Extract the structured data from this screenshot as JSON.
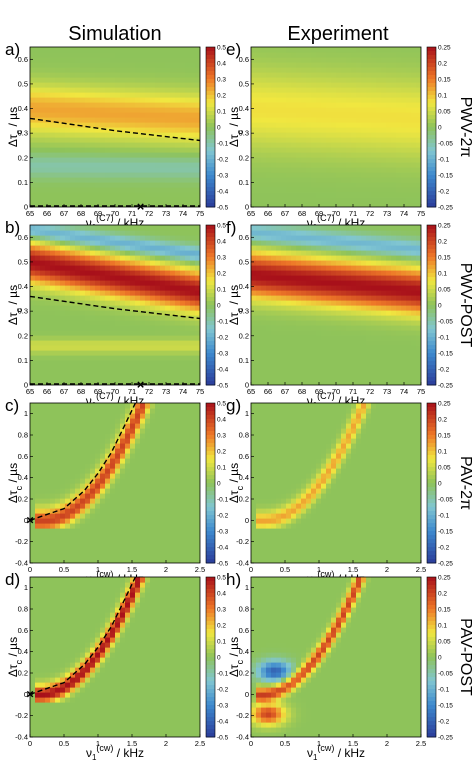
{
  "header": {
    "left": "Simulation",
    "right": "Experiment"
  },
  "panel_labels": [
    "a)",
    "b)",
    "c)",
    "d)",
    "e)",
    "f)",
    "g)",
    "h)"
  ],
  "row_titles": [
    "PWV-2π",
    "PWV-POST",
    "PAV-2π",
    "PAV-POST"
  ],
  "ylabel": {
    "main": "Δτ",
    "sub": "c",
    "unit": " / µs"
  },
  "xlabels": {
    "c7": {
      "main": "ν",
      "sub": "1",
      "sup": "(C7)",
      "unit": " / kHz"
    },
    "cw": {
      "main": "ν",
      "sub": "1",
      "sup": "(cw)",
      "unit": " / kHz"
    }
  },
  "colors": {
    "min": "#2b3c9a",
    "mid": "#8ec35a",
    "max": "#a8101a"
  },
  "colorbar_ticks": {
    "sim": [
      "0.5",
      "0.4",
      "0.3",
      "0.2",
      "0.1",
      "0",
      "-0.1",
      "-0.2",
      "-0.3",
      "-0.4",
      "-0.5"
    ],
    "exp": [
      "0.25",
      "0.2",
      "0.15",
      "0.1",
      "0.05",
      "0",
      "-0.05",
      "-0.1",
      "-0.15",
      "-0.2",
      "-0.25"
    ]
  },
  "chart_data": [
    {
      "panel": "a)",
      "type": "heatmap",
      "source": "Simulation",
      "series_label": "PWV-2π",
      "x_ticks": [
        "65",
        "66",
        "67",
        "68",
        "69",
        "70",
        "71",
        "72",
        "73",
        "74",
        "75"
      ],
      "xlim": [
        65,
        75
      ],
      "y_ticks": [
        "0",
        "0.1",
        "0.2",
        "0.3",
        "0.4",
        "0.5",
        "0.6"
      ],
      "ylim": [
        0,
        0.65
      ],
      "zlim": [
        -0.5,
        0.5
      ],
      "features": [
        {
          "kind": "ridge",
          "y_at_xmin": 0.4,
          "y_at_xmax": 0.36,
          "value": 0.24,
          "width": 0.1
        },
        {
          "kind": "ridge",
          "y_at_xmin": 0.17,
          "y_at_xmax": 0.16,
          "value": -0.1,
          "width": 0.05
        }
      ],
      "dashed_curve": [
        [
          65,
          0.36
        ],
        [
          70,
          0.31
        ],
        [
          75,
          0.27
        ]
      ],
      "marker": {
        "symbol": "×",
        "x": 71.5,
        "y": 0
      }
    },
    {
      "panel": "b)",
      "type": "heatmap",
      "source": "Simulation",
      "series_label": "PWV-POST",
      "x_ticks": [
        "65",
        "66",
        "67",
        "68",
        "69",
        "70",
        "71",
        "72",
        "73",
        "74",
        "75"
      ],
      "xlim": [
        65,
        75
      ],
      "y_ticks": [
        "0",
        "0.1",
        "0.2",
        "0.3",
        "0.4",
        "0.5",
        "0.6"
      ],
      "ylim": [
        0,
        0.65
      ],
      "zlim": [
        -0.5,
        0.5
      ],
      "features": [
        {
          "kind": "ridge",
          "y_at_xmin": 0.5,
          "y_at_xmax": 0.38,
          "value": 0.5,
          "width": 0.08
        },
        {
          "kind": "ridge",
          "y_at_xmin": 0.63,
          "y_at_xmax": 0.53,
          "value": -0.22,
          "width": 0.035
        },
        {
          "kind": "ridge",
          "y_at_xmin": 0.16,
          "y_at_xmax": 0.16,
          "value": 0.1,
          "width": 0.03
        }
      ],
      "dashed_curve": [
        [
          65,
          0.36
        ],
        [
          70,
          0.31
        ],
        [
          75,
          0.27
        ]
      ],
      "marker": {
        "symbol": "×",
        "x": 71.5,
        "y": 0
      }
    },
    {
      "panel": "c)",
      "type": "heatmap",
      "source": "Simulation",
      "series_label": "PAV-2π",
      "x_ticks": [
        "0",
        "0.5",
        "1",
        "1.5",
        "2",
        "2.5"
      ],
      "xlim": [
        0,
        2.5
      ],
      "y_ticks": [
        "-0.4",
        "-0.2",
        "0",
        "0.2",
        "0.4",
        "0.6",
        "0.8",
        "1"
      ],
      "ylim": [
        -0.4,
        1.1
      ],
      "zlim": [
        -0.5,
        0.5
      ],
      "features": [
        {
          "kind": "curve-ridge",
          "offset_x": 0.15,
          "value": 0.4,
          "width": 0.1
        }
      ],
      "dashed_curve": [
        [
          0,
          0
        ],
        [
          0.5,
          0.11
        ],
        [
          0.8,
          0.28
        ],
        [
          1.0,
          0.44
        ],
        [
          1.2,
          0.64
        ],
        [
          1.4,
          0.9
        ],
        [
          1.55,
          1.1
        ]
      ],
      "marker": {
        "symbol": "×",
        "x": 0,
        "y": 0
      }
    },
    {
      "panel": "d)",
      "type": "heatmap",
      "source": "Simulation",
      "series_label": "PAV-POST",
      "x_ticks": [
        "0",
        "0.5",
        "1",
        "1.5",
        "2",
        "2.5"
      ],
      "xlim": [
        0,
        2.5
      ],
      "y_ticks": [
        "-0.4",
        "-0.2",
        "0",
        "0.2",
        "0.4",
        "0.6",
        "0.8",
        "1"
      ],
      "ylim": [
        -0.4,
        1.1
      ],
      "zlim": [
        -0.5,
        0.5
      ],
      "features": [
        {
          "kind": "curve-ridge",
          "offset_x": 0.1,
          "value": 0.5,
          "width": 0.08
        }
      ],
      "dashed_curve": [
        [
          0,
          0
        ],
        [
          0.5,
          0.11
        ],
        [
          0.8,
          0.28
        ],
        [
          1.0,
          0.44
        ],
        [
          1.2,
          0.64
        ],
        [
          1.4,
          0.9
        ],
        [
          1.55,
          1.1
        ]
      ],
      "marker": {
        "symbol": "×",
        "x": 0,
        "y": 0
      }
    },
    {
      "panel": "e)",
      "type": "heatmap",
      "source": "Experiment",
      "series_label": "PWV-2π",
      "x_ticks": [
        "65",
        "66",
        "67",
        "68",
        "69",
        "70",
        "71",
        "72",
        "73",
        "74",
        "75"
      ],
      "xlim": [
        65,
        75
      ],
      "y_ticks": [
        "0",
        "0.1",
        "0.2",
        "0.3",
        "0.4",
        "0.5",
        "0.6"
      ],
      "ylim": [
        0,
        0.65
      ],
      "zlim": [
        -0.25,
        0.25
      ],
      "features": [
        {
          "kind": "ridge",
          "y_at_xmin": 0.4,
          "y_at_xmax": 0.36,
          "value": 0.08,
          "width": 0.16
        }
      ]
    },
    {
      "panel": "f)",
      "type": "heatmap",
      "source": "Experiment",
      "series_label": "PWV-POST",
      "x_ticks": [
        "65",
        "66",
        "67",
        "68",
        "69",
        "70",
        "71",
        "72",
        "73",
        "74",
        "75"
      ],
      "xlim": [
        65,
        75
      ],
      "y_ticks": [
        "0",
        "0.1",
        "0.2",
        "0.3",
        "0.4",
        "0.5",
        "0.6"
      ],
      "ylim": [
        0,
        0.65
      ],
      "zlim": [
        -0.25,
        0.25
      ],
      "features": [
        {
          "kind": "ridge",
          "y_at_xmin": 0.45,
          "y_at_xmax": 0.38,
          "value": 0.25,
          "width": 0.09
        },
        {
          "kind": "ridge",
          "y_at_xmin": 0.62,
          "y_at_xmax": 0.55,
          "value": -0.1,
          "width": 0.04
        }
      ]
    },
    {
      "panel": "g)",
      "type": "heatmap",
      "source": "Experiment",
      "series_label": "PAV-2π",
      "x_ticks": [
        "0",
        "0.5",
        "1",
        "1.5",
        "2",
        "2.5"
      ],
      "xlim": [
        0,
        2.5
      ],
      "y_ticks": [
        "-0.4",
        "-0.2",
        "0",
        "0.2",
        "0.4",
        "0.6",
        "0.8",
        "1"
      ],
      "ylim": [
        -0.4,
        1.1
      ],
      "zlim": [
        -0.25,
        0.25
      ],
      "features": [
        {
          "kind": "curve-ridge",
          "offset_x": 0.15,
          "value": 0.12,
          "width": 0.08
        }
      ]
    },
    {
      "panel": "h)",
      "type": "heatmap",
      "source": "Experiment",
      "series_label": "PAV-POST",
      "x_ticks": [
        "0",
        "0.5",
        "1",
        "1.5",
        "2",
        "2.5"
      ],
      "xlim": [
        0,
        2.5
      ],
      "y_ticks": [
        "-0.4",
        "-0.2",
        "0",
        "0.2",
        "0.4",
        "0.6",
        "0.8",
        "1"
      ],
      "ylim": [
        -0.4,
        1.1
      ],
      "zlim": [
        -0.25,
        0.25
      ],
      "features": [
        {
          "kind": "curve-ridge",
          "offset_x": 0.1,
          "value": 0.2,
          "width": 0.07
        },
        {
          "kind": "blob",
          "x": 0.25,
          "y": -0.18,
          "value": 0.2,
          "width": 0.1
        },
        {
          "kind": "blob",
          "x": 0.35,
          "y": 0.22,
          "value": -0.2,
          "width": 0.1
        }
      ]
    }
  ]
}
